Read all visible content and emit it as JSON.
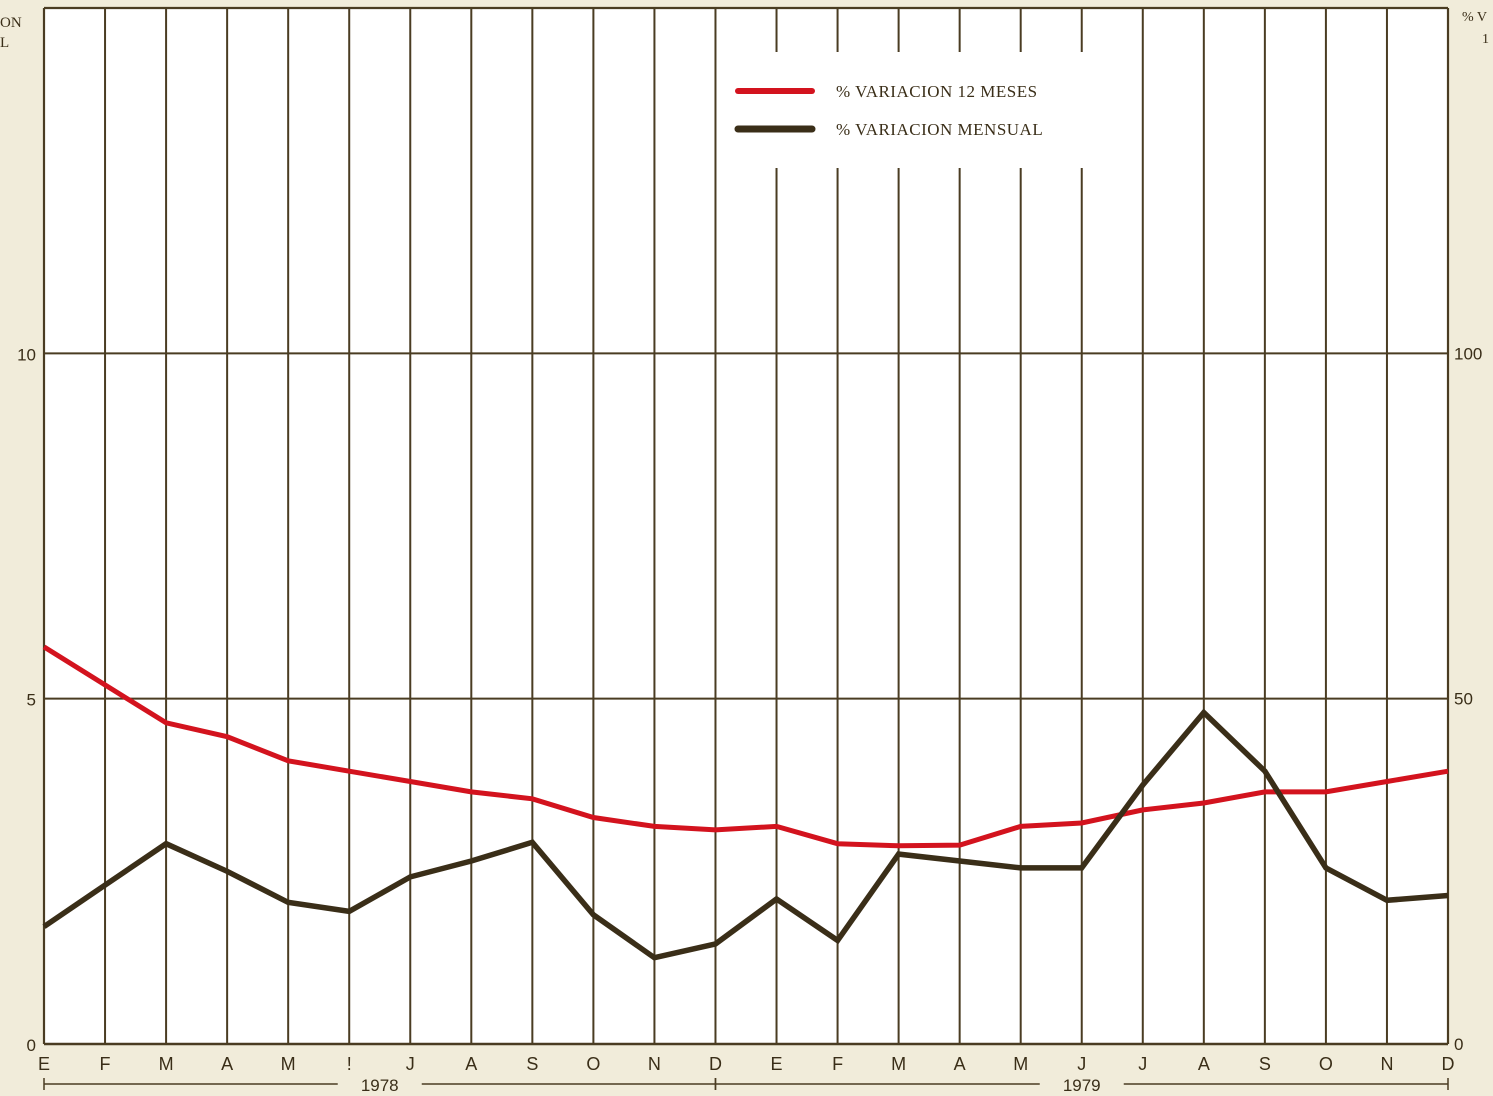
{
  "colors": {
    "background": "#f1ecda",
    "plot_area": "#ffffff",
    "grid": "#4a3c22",
    "series_12m": "#d3131e",
    "series_monthly": "#3a2e18"
  },
  "left_axis_title_fragment": [
    "ON",
    "L"
  ],
  "right_axis_title_fragment": [
    "% V",
    "1"
  ],
  "chart_data": {
    "type": "line",
    "x": [
      "E",
      "F",
      "M",
      "A",
      "M",
      "!",
      "J",
      "A",
      "S",
      "O",
      "N",
      "D",
      "E",
      "F",
      "M",
      "A",
      "M",
      "J",
      "J",
      "A",
      "S",
      "O",
      "N",
      "D"
    ],
    "years": [
      {
        "label": "1978",
        "start_index": 0,
        "end_index": 11
      },
      {
        "label": "1979",
        "start_index": 11,
        "end_index": 23
      }
    ],
    "left_axis": {
      "ticks": [
        "0",
        "5",
        "10"
      ],
      "ylim": [
        0,
        15
      ]
    },
    "right_axis": {
      "ticks": [
        "0",
        "50",
        "100"
      ],
      "ylim": [
        0,
        150
      ]
    },
    "grid": true,
    "legend_position": "top-center",
    "series": [
      {
        "name": "% VARIACION 12 MESES",
        "axis": "right",
        "color": "#d3131e",
        "values": [
          57.5,
          52,
          46.5,
          44.5,
          41,
          39.5,
          38,
          36.5,
          35.5,
          32.8,
          31.5,
          31,
          31.5,
          29,
          28.7,
          28.8,
          31.5,
          32,
          33.9,
          34.9,
          36.5,
          36.5,
          38,
          39.5
        ]
      },
      {
        "name": "% VARIACION MENSUAL",
        "axis": "left",
        "color": "#3a2e18",
        "values": [
          1.7,
          2.3,
          2.9,
          2.5,
          2.05,
          1.92,
          2.42,
          2.65,
          2.92,
          1.87,
          1.25,
          1.45,
          2.1,
          1.5,
          2.75,
          2.65,
          2.55,
          2.55,
          3.75,
          4.8,
          3.95,
          2.55,
          2.08,
          2.15
        ]
      }
    ]
  }
}
